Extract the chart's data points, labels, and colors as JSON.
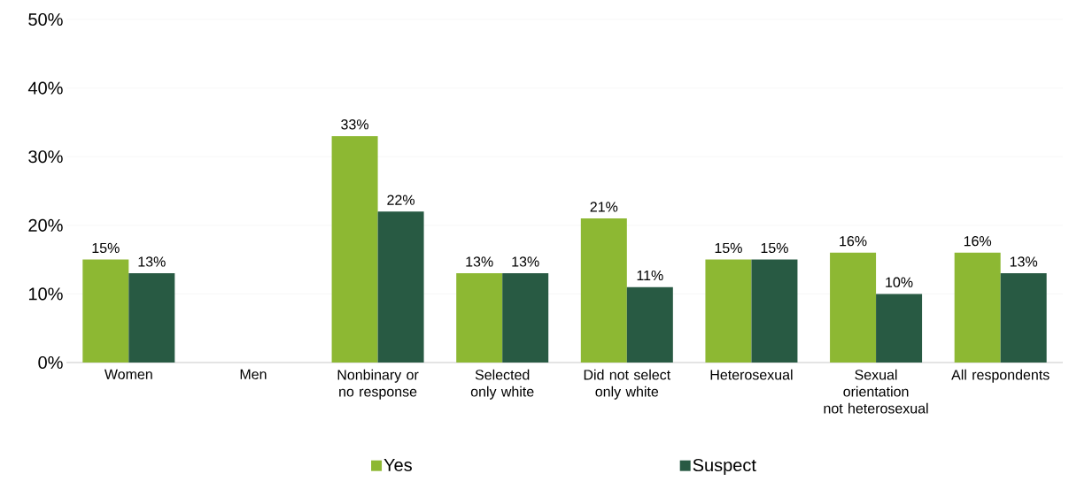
{
  "chart_data": {
    "type": "bar",
    "categories": [
      "Women",
      "Men",
      "Nonbinary or no response",
      "Selected only white",
      "Did not select only white",
      "Heterosexual",
      "Sexual orientation not heterosexual",
      "All respondents"
    ],
    "series": [
      {
        "name": "Yes",
        "color": "#8db833",
        "values": [
          15,
          null,
          33,
          13,
          21,
          15,
          16,
          16
        ],
        "value_labels": [
          "15%",
          null,
          "33%",
          "13%",
          "21%",
          "15%",
          "16%",
          "16%"
        ]
      },
      {
        "name": "Suspect",
        "color": "#285a43",
        "values": [
          13,
          null,
          22,
          13,
          11,
          15,
          10,
          13
        ],
        "value_labels": [
          "13%",
          null,
          "22%",
          "13%",
          "11%",
          "15%",
          "10%",
          "13%"
        ]
      }
    ],
    "ylim": [
      0,
      50
    ],
    "yticks": [
      {
        "value": 0,
        "label": "0%"
      },
      {
        "value": 10,
        "label": "10%"
      },
      {
        "value": 20,
        "label": "20%"
      },
      {
        "value": 30,
        "label": "30%"
      },
      {
        "value": 40,
        "label": "40%"
      },
      {
        "value": 50,
        "label": "50%"
      }
    ],
    "grid": "y",
    "legend": "bottom"
  }
}
